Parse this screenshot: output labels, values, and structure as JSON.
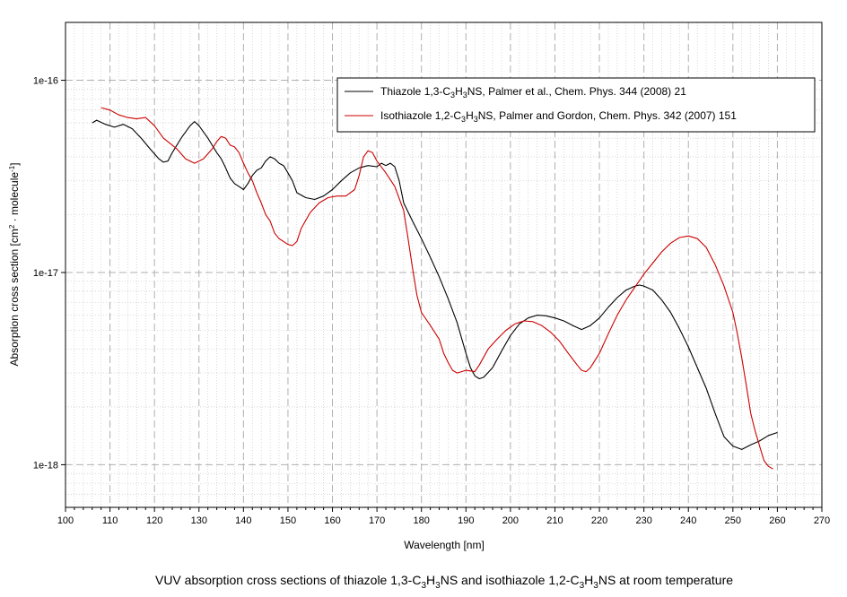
{
  "chart_data": {
    "type": "line",
    "scale": {
      "y": "log"
    },
    "grid": true,
    "xlim": [
      100,
      270
    ],
    "ylim": [
      6e-19,
      2e-16
    ],
    "x_ticks": [
      100,
      110,
      120,
      130,
      140,
      150,
      160,
      170,
      180,
      190,
      200,
      210,
      220,
      230,
      240,
      250,
      260,
      270
    ],
    "x_tick_labels": [
      "100",
      "110",
      "120",
      "130",
      "140",
      "150",
      "160",
      "170",
      "180",
      "190",
      "200",
      "210",
      "220",
      "230",
      "240",
      "250",
      "260",
      "270"
    ],
    "y_ticks": [
      1e-18,
      1e-17,
      1e-16
    ],
    "y_tick_labels": [
      "1e-18",
      "1e-17",
      "1e-16"
    ],
    "xlabel": "Wavelength [nm]",
    "ylabel_main": "Absorption cross section [cm",
    "ylabel_sup1": "2",
    "ylabel_mid": " · molecule",
    "ylabel_sup2": "-1",
    "ylabel_end": "]",
    "legend_position": "top-right",
    "caption": {
      "p1": "VUV absorption cross sections of thiazole 1,3-C",
      "s1": "3",
      "p2": "H",
      "s2": "3",
      "p3": "NS and isothiazole 1,2-C",
      "s3": "3",
      "p4": "H",
      "s4": "3",
      "p5": "NS at room temperature"
    },
    "series": [
      {
        "legend": {
          "p1": "Thiazole 1,3-C",
          "s1": "3",
          "p2": "H",
          "s2": "3",
          "p3": "NS, Palmer et al., Chem. Phys. 344 (2008) 21"
        },
        "color": "#000000",
        "points": [
          [
            106,
            6e-17
          ],
          [
            107,
            6.2e-17
          ],
          [
            109,
            5.9e-17
          ],
          [
            111,
            5.7e-17
          ],
          [
            113,
            5.9e-17
          ],
          [
            115,
            5.6e-17
          ],
          [
            117,
            5e-17
          ],
          [
            119,
            4.4e-17
          ],
          [
            121,
            3.9e-17
          ],
          [
            122,
            3.75e-17
          ],
          [
            123,
            3.8e-17
          ],
          [
            124,
            4.2e-17
          ],
          [
            126,
            5e-17
          ],
          [
            128,
            5.8e-17
          ],
          [
            129,
            6.1e-17
          ],
          [
            130,
            5.8e-17
          ],
          [
            132,
            5e-17
          ],
          [
            134,
            4.2e-17
          ],
          [
            135,
            3.9e-17
          ],
          [
            136,
            3.5e-17
          ],
          [
            137,
            3.1e-17
          ],
          [
            138,
            2.9e-17
          ],
          [
            139,
            2.8e-17
          ],
          [
            140,
            2.7e-17
          ],
          [
            141,
            2.9e-17
          ],
          [
            142,
            3.2e-17
          ],
          [
            143,
            3.4e-17
          ],
          [
            144,
            3.5e-17
          ],
          [
            145,
            3.8e-17
          ],
          [
            146,
            4e-17
          ],
          [
            147,
            3.9e-17
          ],
          [
            148,
            3.7e-17
          ],
          [
            149,
            3.6e-17
          ],
          [
            150,
            3.3e-17
          ],
          [
            151,
            3e-17
          ],
          [
            152,
            2.6e-17
          ],
          [
            154,
            2.45e-17
          ],
          [
            156,
            2.4e-17
          ],
          [
            158,
            2.5e-17
          ],
          [
            160,
            2.7e-17
          ],
          [
            162,
            3e-17
          ],
          [
            164,
            3.3e-17
          ],
          [
            166,
            3.5e-17
          ],
          [
            168,
            3.6e-17
          ],
          [
            170,
            3.55e-17
          ],
          [
            171,
            3.7e-17
          ],
          [
            172,
            3.6e-17
          ],
          [
            173,
            3.7e-17
          ],
          [
            174,
            3.55e-17
          ],
          [
            175,
            3e-17
          ],
          [
            176,
            2.3e-17
          ],
          [
            178,
            1.85e-17
          ],
          [
            180,
            1.5e-17
          ],
          [
            182,
            1.2e-17
          ],
          [
            184,
            9.5e-18
          ],
          [
            186,
            7.3e-18
          ],
          [
            188,
            5.5e-18
          ],
          [
            190,
            3.8e-18
          ],
          [
            191,
            3.2e-18
          ],
          [
            192,
            2.9e-18
          ],
          [
            193,
            2.8e-18
          ],
          [
            194,
            2.85e-18
          ],
          [
            196,
            3.2e-18
          ],
          [
            198,
            3.9e-18
          ],
          [
            200,
            4.7e-18
          ],
          [
            202,
            5.4e-18
          ],
          [
            204,
            5.8e-18
          ],
          [
            206,
            6e-18
          ],
          [
            208,
            5.95e-18
          ],
          [
            210,
            5.8e-18
          ],
          [
            212,
            5.6e-18
          ],
          [
            214,
            5.3e-18
          ],
          [
            216,
            5.05e-18
          ],
          [
            218,
            5.3e-18
          ],
          [
            220,
            5.8e-18
          ],
          [
            222,
            6.6e-18
          ],
          [
            224,
            7.4e-18
          ],
          [
            226,
            8.1e-18
          ],
          [
            228,
            8.5e-18
          ],
          [
            229,
            8.6e-18
          ],
          [
            230,
            8.5e-18
          ],
          [
            232,
            8.1e-18
          ],
          [
            234,
            7.2e-18
          ],
          [
            236,
            6.2e-18
          ],
          [
            238,
            5.1e-18
          ],
          [
            240,
            4.1e-18
          ],
          [
            242,
            3.2e-18
          ],
          [
            244,
            2.5e-18
          ],
          [
            246,
            1.85e-18
          ],
          [
            248,
            1.4e-18
          ],
          [
            250,
            1.25e-18
          ],
          [
            252,
            1.2e-18
          ],
          [
            254,
            1.27e-18
          ],
          [
            256,
            1.33e-18
          ],
          [
            258,
            1.42e-18
          ],
          [
            260,
            1.47e-18
          ]
        ]
      },
      {
        "legend": {
          "p1": "Isothiazole 1,2-C",
          "s1": "3",
          "p2": "H",
          "s2": "3",
          "p3": "NS, Palmer and Gordon, Chem. Phys. 342 (2007) 151"
        },
        "color": "#cc0000",
        "points": [
          [
            108,
            7.2e-17
          ],
          [
            110,
            7e-17
          ],
          [
            112,
            6.6e-17
          ],
          [
            114,
            6.4e-17
          ],
          [
            116,
            6.3e-17
          ],
          [
            118,
            6.4e-17
          ],
          [
            120,
            5.8e-17
          ],
          [
            122,
            5e-17
          ],
          [
            124,
            4.6e-17
          ],
          [
            125,
            4.4e-17
          ],
          [
            127,
            3.9e-17
          ],
          [
            129,
            3.7e-17
          ],
          [
            131,
            3.9e-17
          ],
          [
            133,
            4.4e-17
          ],
          [
            134,
            4.8e-17
          ],
          [
            135,
            5.1e-17
          ],
          [
            136,
            5e-17
          ],
          [
            137,
            4.6e-17
          ],
          [
            138,
            4.5e-17
          ],
          [
            139,
            4.2e-17
          ],
          [
            140,
            3.7e-17
          ],
          [
            141,
            3.3e-17
          ],
          [
            142,
            3e-17
          ],
          [
            143,
            2.6e-17
          ],
          [
            144,
            2.3e-17
          ],
          [
            145,
            2e-17
          ],
          [
            146,
            1.85e-17
          ],
          [
            147,
            1.6e-17
          ],
          [
            148,
            1.5e-17
          ],
          [
            149,
            1.45e-17
          ],
          [
            150,
            1.4e-17
          ],
          [
            151,
            1.38e-17
          ],
          [
            152,
            1.45e-17
          ],
          [
            153,
            1.7e-17
          ],
          [
            155,
            2.05e-17
          ],
          [
            157,
            2.3e-17
          ],
          [
            159,
            2.45e-17
          ],
          [
            161,
            2.5e-17
          ],
          [
            163,
            2.5e-17
          ],
          [
            165,
            2.7e-17
          ],
          [
            166,
            3.2e-17
          ],
          [
            167,
            4e-17
          ],
          [
            168,
            4.3e-17
          ],
          [
            169,
            4.2e-17
          ],
          [
            170,
            3.8e-17
          ],
          [
            172,
            3.3e-17
          ],
          [
            174,
            2.8e-17
          ],
          [
            176,
            2.1e-17
          ],
          [
            177,
            1.5e-17
          ],
          [
            178,
            1.05e-17
          ],
          [
            179,
            7.6e-18
          ],
          [
            180,
            6.2e-18
          ],
          [
            182,
            5.3e-18
          ],
          [
            184,
            4.5e-18
          ],
          [
            185,
            3.8e-18
          ],
          [
            186,
            3.4e-18
          ],
          [
            187,
            3.1e-18
          ],
          [
            188,
            3e-18
          ],
          [
            190,
            3.1e-18
          ],
          [
            192,
            3.05e-18
          ],
          [
            193,
            3.3e-18
          ],
          [
            195,
            4e-18
          ],
          [
            197,
            4.5e-18
          ],
          [
            199,
            5e-18
          ],
          [
            201,
            5.4e-18
          ],
          [
            203,
            5.6e-18
          ],
          [
            205,
            5.55e-18
          ],
          [
            207,
            5.3e-18
          ],
          [
            209,
            4.9e-18
          ],
          [
            211,
            4.4e-18
          ],
          [
            213,
            3.8e-18
          ],
          [
            215,
            3.3e-18
          ],
          [
            216,
            3.1e-18
          ],
          [
            217,
            3.05e-18
          ],
          [
            218,
            3.2e-18
          ],
          [
            220,
            3.8e-18
          ],
          [
            222,
            4.8e-18
          ],
          [
            224,
            6e-18
          ],
          [
            226,
            7.2e-18
          ],
          [
            228,
            8.4e-18
          ],
          [
            230,
            9.8e-18
          ],
          [
            232,
            1.12e-17
          ],
          [
            234,
            1.28e-17
          ],
          [
            236,
            1.42e-17
          ],
          [
            238,
            1.52e-17
          ],
          [
            240,
            1.55e-17
          ],
          [
            242,
            1.5e-17
          ],
          [
            244,
            1.35e-17
          ],
          [
            246,
            1.1e-17
          ],
          [
            248,
            8.5e-18
          ],
          [
            250,
            6.2e-18
          ],
          [
            251,
            4.8e-18
          ],
          [
            252,
            3.6e-18
          ],
          [
            253,
            2.6e-18
          ],
          [
            254,
            1.85e-18
          ],
          [
            255,
            1.5e-18
          ],
          [
            256,
            1.25e-18
          ],
          [
            257,
            1.05e-18
          ],
          [
            258,
            9.8e-19
          ],
          [
            259,
            9.5e-19
          ]
        ]
      }
    ]
  }
}
